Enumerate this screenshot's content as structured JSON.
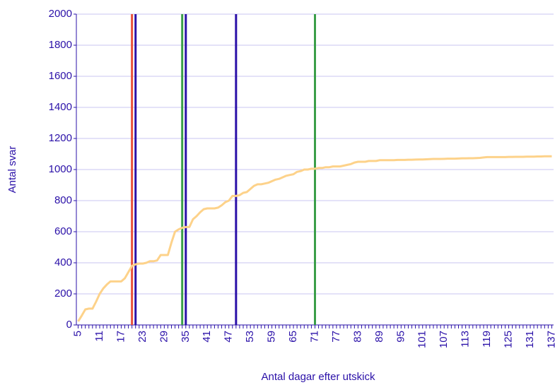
{
  "chart_data": {
    "type": "line",
    "x_label": "Antal dagar efter utskick",
    "y_label": "Antal svar",
    "categories": [
      "5",
      null,
      null,
      null,
      null,
      null,
      "11",
      null,
      null,
      null,
      null,
      null,
      "17",
      null,
      null,
      null,
      null,
      null,
      "23",
      null,
      null,
      null,
      null,
      null,
      "29",
      null,
      null,
      null,
      null,
      null,
      "35",
      null,
      null,
      null,
      null,
      null,
      "41",
      null,
      null,
      null,
      null,
      null,
      "47",
      null,
      null,
      null,
      null,
      null,
      "53",
      null,
      null,
      null,
      null,
      null,
      "59",
      null,
      null,
      null,
      null,
      null,
      "65",
      null,
      null,
      null,
      null,
      null,
      "71",
      null,
      null,
      null,
      null,
      null,
      "77",
      null,
      null,
      null,
      null,
      null,
      "83",
      null,
      null,
      null,
      null,
      null,
      "89",
      null,
      null,
      null,
      null,
      null,
      "95",
      null,
      null,
      null,
      null,
      null,
      "101",
      null,
      null,
      null,
      null,
      null,
      "107",
      null,
      null,
      null,
      null,
      null,
      "113",
      null,
      null,
      null,
      null,
      null,
      "119",
      null,
      null,
      null,
      null,
      null,
      "125",
      null,
      null,
      null,
      null,
      null,
      "131",
      null,
      null,
      null,
      null,
      null,
      "137"
    ],
    "series": [
      {
        "color": "#fdd28a",
        "values": [
          23,
          60,
          100,
          105,
          105,
          150,
          200,
          235,
          260,
          280,
          280,
          280,
          280,
          300,
          340,
          380,
          390,
          395,
          395,
          400,
          410,
          410,
          415,
          450,
          450,
          450,
          530,
          600,
          615,
          625,
          630,
          630,
          680,
          700,
          725,
          745,
          750,
          750,
          750,
          755,
          770,
          790,
          800,
          830,
          830,
          835,
          850,
          855,
          875,
          895,
          905,
          905,
          910,
          915,
          925,
          935,
          940,
          950,
          960,
          965,
          970,
          985,
          990,
          1000,
          1000,
          1005,
          1005,
          1010,
          1010,
          1015,
          1015,
          1020,
          1020,
          1020,
          1025,
          1030,
          1035,
          1045,
          1050,
          1050,
          1050,
          1055,
          1055,
          1055,
          1060,
          1060,
          1060,
          1060,
          1060,
          1062,
          1062,
          1062,
          1063,
          1063,
          1064,
          1065,
          1065,
          1066,
          1067,
          1068,
          1068,
          1068,
          1069,
          1070,
          1070,
          1070,
          1071,
          1072,
          1072,
          1073,
          1073,
          1074,
          1075,
          1078,
          1080,
          1080,
          1080,
          1080,
          1080,
          1080,
          1081,
          1081,
          1082,
          1082,
          1082,
          1083,
          1083,
          1083,
          1084,
          1084,
          1085,
          1085,
          1085
        ]
      }
    ],
    "markers": [
      {
        "x": 20,
        "color": "#e8503a"
      },
      {
        "x": 21,
        "color": "#2a10a8"
      },
      {
        "x": 34,
        "color": "#3a9e48"
      },
      {
        "x": 35,
        "color": "#2a10a8"
      },
      {
        "x": 49,
        "color": "#2a10a8"
      },
      {
        "x": 71,
        "color": "#3a9e48"
      }
    ],
    "ylim": [
      0,
      2000
    ],
    "yticks": [
      0,
      200,
      400,
      600,
      800,
      1000,
      1200,
      1400,
      1600,
      1800,
      2000
    ],
    "grid": true
  }
}
